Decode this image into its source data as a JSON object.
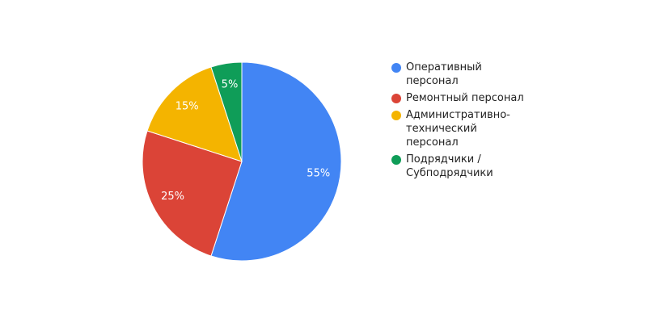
{
  "chart_data": {
    "type": "pie",
    "categories": [
      "Оперативный персонал",
      "Ремонтный персонал",
      "Административно-технический персонал",
      "Подрядчики / Субподрядчики"
    ],
    "values": [
      55,
      25,
      15,
      5
    ],
    "value_labels": [
      "55%",
      "25%",
      "15%",
      "5%"
    ],
    "colors": [
      "#4285f4",
      "#db4437",
      "#f4b400",
      "#0f9d58"
    ],
    "legend": "right"
  }
}
